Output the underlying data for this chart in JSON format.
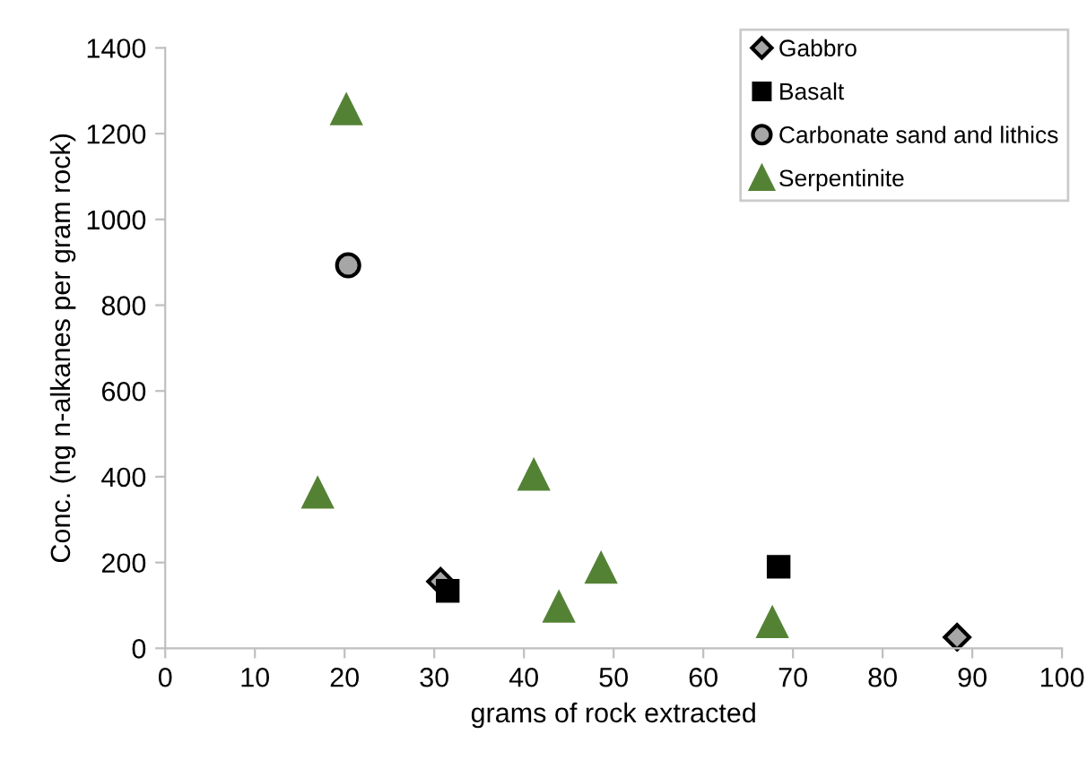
{
  "chart_data": {
    "type": "scatter",
    "xlabel": "grams of rock extracted",
    "ylabel": "Conc. (ng n-alkanes per gram rock)",
    "xlim": [
      0,
      100
    ],
    "xticks": [
      0,
      10,
      20,
      30,
      40,
      50,
      60,
      70,
      80,
      90,
      100
    ],
    "ylim": [
      0,
      1400
    ],
    "yticks": [
      0,
      200,
      400,
      600,
      800,
      1000,
      1200,
      1400
    ],
    "grid": false,
    "legend": "top right",
    "series": [
      {
        "name": "Gabbro",
        "color": "#a6a6a6",
        "marker": "diamond",
        "x": [
          30.7,
          88.3
        ],
        "values": [
          156,
          26
        ]
      },
      {
        "name": "Basalt",
        "color": "#000000",
        "marker": "square",
        "x": [
          31.5,
          68.4
        ],
        "values": [
          134,
          190
        ]
      },
      {
        "name": "Carbonate sand and lithics",
        "color": "#a6a6a6",
        "marker": "circle",
        "x": [
          20.4
        ],
        "values": [
          893
        ]
      },
      {
        "name": "Serpentinite",
        "color": "#548235",
        "marker": "triangle",
        "x": [
          20.2,
          17,
          41.1,
          43.9,
          48.6,
          67.7
        ],
        "values": [
          1256,
          362,
          404,
          96,
          187,
          60
        ]
      }
    ]
  }
}
